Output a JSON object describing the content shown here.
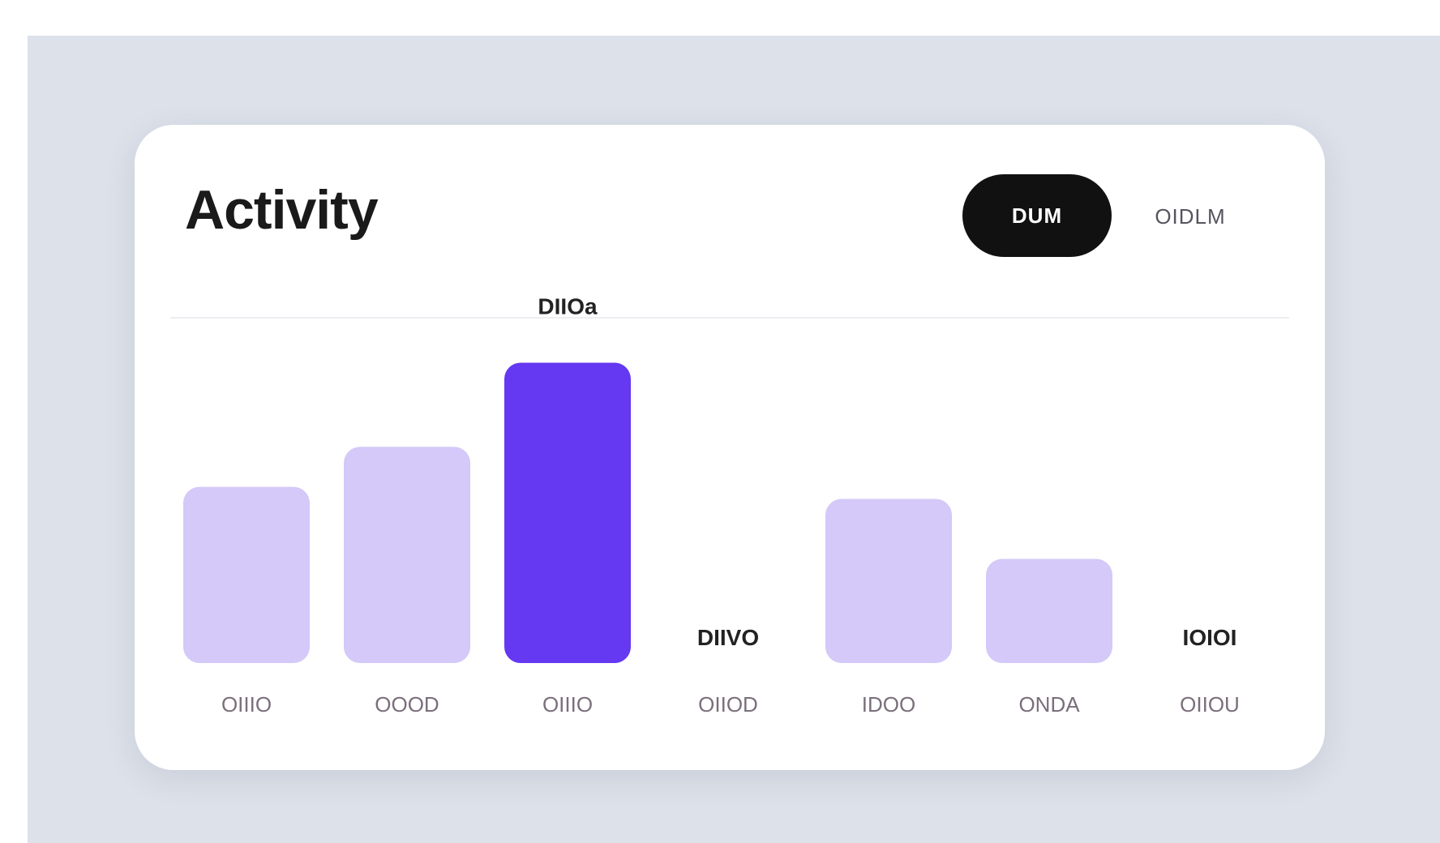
{
  "card": {
    "title": "Activity",
    "toggle": {
      "active_label": "DUM",
      "inactive_label": "OIDLM"
    }
  },
  "colors": {
    "bar_default": "#d4c9f8",
    "bar_highlight": "#6538f2",
    "page_bg": "#dde1ea",
    "card_bg": "#ffffff"
  },
  "chart_data": {
    "type": "bar",
    "title": "Activity",
    "categories": [
      "OIIIO",
      "OOOD",
      "OIIIO",
      "OIIOD",
      "IDOO",
      "ONDA",
      "OIIOU"
    ],
    "values": [
      44,
      54,
      75,
      0,
      41,
      26,
      0
    ],
    "highlight_index": 2,
    "value_labels": [
      "",
      "",
      "DIIOa",
      "DIIVO",
      "",
      "",
      "IOIOI"
    ],
    "ylim": [
      0,
      100
    ],
    "grid": false,
    "legend": "none"
  }
}
